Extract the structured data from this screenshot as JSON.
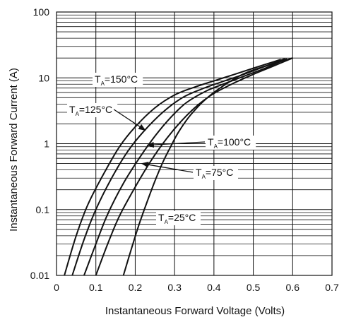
{
  "chart_data": {
    "type": "line",
    "xlabel": "Instantaneous Forward Voltage (Volts)",
    "ylabel": "Instantaneous Forward Current (A)",
    "xlim": [
      0,
      0.7
    ],
    "ylim": [
      0.01,
      100
    ],
    "y_scale": "log",
    "grid": true,
    "x_ticks": [
      {
        "value": 0,
        "label": "0"
      },
      {
        "value": 0.1,
        "label": "0.1"
      },
      {
        "value": 0.2,
        "label": "0.2"
      },
      {
        "value": 0.3,
        "label": "0.3"
      },
      {
        "value": 0.4,
        "label": "0.4"
      },
      {
        "value": 0.5,
        "label": "0.5"
      },
      {
        "value": 0.6,
        "label": "0.6"
      },
      {
        "value": 0.7,
        "label": "0.7"
      }
    ],
    "y_ticks": [
      {
        "value": 0.01,
        "label": "0.01"
      },
      {
        "value": 0.1,
        "label": "0.1"
      },
      {
        "value": 1,
        "label": "1"
      },
      {
        "value": 10,
        "label": "10"
      },
      {
        "value": 100,
        "label": "100"
      }
    ],
    "series": [
      {
        "name": "T_A=150°C",
        "x": [
          0.02,
          0.05,
          0.08,
          0.12,
          0.16,
          0.2,
          0.25,
          0.3,
          0.35,
          0.4,
          0.45,
          0.5,
          0.57
        ],
        "y": [
          0.01,
          0.04,
          0.12,
          0.35,
          0.9,
          1.8,
          3.5,
          5.5,
          7.2,
          9.0,
          11.2,
          14.0,
          19.0
        ]
      },
      {
        "name": "T_A=125°C",
        "x": [
          0.04,
          0.07,
          0.1,
          0.14,
          0.18,
          0.22,
          0.27,
          0.32,
          0.37,
          0.42,
          0.47,
          0.52,
          0.58
        ],
        "y": [
          0.01,
          0.035,
          0.1,
          0.3,
          0.75,
          1.5,
          3.0,
          5.0,
          6.8,
          8.7,
          11.0,
          14.2,
          19.5
        ]
      },
      {
        "name": "T_A=100°C",
        "x": [
          0.07,
          0.1,
          0.13,
          0.17,
          0.21,
          0.25,
          0.29,
          0.33,
          0.38,
          0.43,
          0.48,
          0.53,
          0.585
        ],
        "y": [
          0.01,
          0.03,
          0.085,
          0.25,
          0.6,
          1.3,
          2.5,
          4.2,
          6.3,
          8.3,
          10.8,
          14.0,
          19.5
        ]
      },
      {
        "name": "T_A=75°C",
        "x": [
          0.1,
          0.13,
          0.16,
          0.2,
          0.24,
          0.28,
          0.32,
          0.36,
          0.4,
          0.45,
          0.5,
          0.55,
          0.6
        ],
        "y": [
          0.01,
          0.03,
          0.08,
          0.22,
          0.55,
          1.2,
          2.3,
          3.9,
          5.8,
          8.3,
          11.3,
          15.0,
          20.0
        ]
      },
      {
        "name": "T_A=25°C",
        "x": [
          0.17,
          0.19,
          0.21,
          0.23,
          0.25,
          0.27,
          0.29,
          0.31,
          0.34,
          0.38,
          0.43,
          0.49,
          0.6
        ],
        "y": [
          0.01,
          0.025,
          0.06,
          0.13,
          0.27,
          0.52,
          0.9,
          1.5,
          2.7,
          4.8,
          8.0,
          12.5,
          20.0
        ]
      }
    ],
    "annotations": [
      {
        "series": "T_A=150°C",
        "prefix": "T",
        "sub": "A",
        "suffix": "=150°C",
        "arrow": false
      },
      {
        "series": "T_A=125°C",
        "prefix": "T",
        "sub": "A",
        "suffix": "=125°C",
        "arrow": true
      },
      {
        "series": "T_A=100°C",
        "prefix": "T",
        "sub": "A",
        "suffix": "=100°C",
        "arrow": true
      },
      {
        "series": "T_A=75°C",
        "prefix": "T",
        "sub": "A",
        "suffix": "=75°C",
        "arrow": true
      },
      {
        "series": "T_A=25°C",
        "prefix": "T",
        "sub": "A",
        "suffix": "=25°C",
        "arrow": false
      }
    ],
    "colors": {
      "line": "#111111",
      "grid": "#111111",
      "background": "#ffffff"
    }
  }
}
